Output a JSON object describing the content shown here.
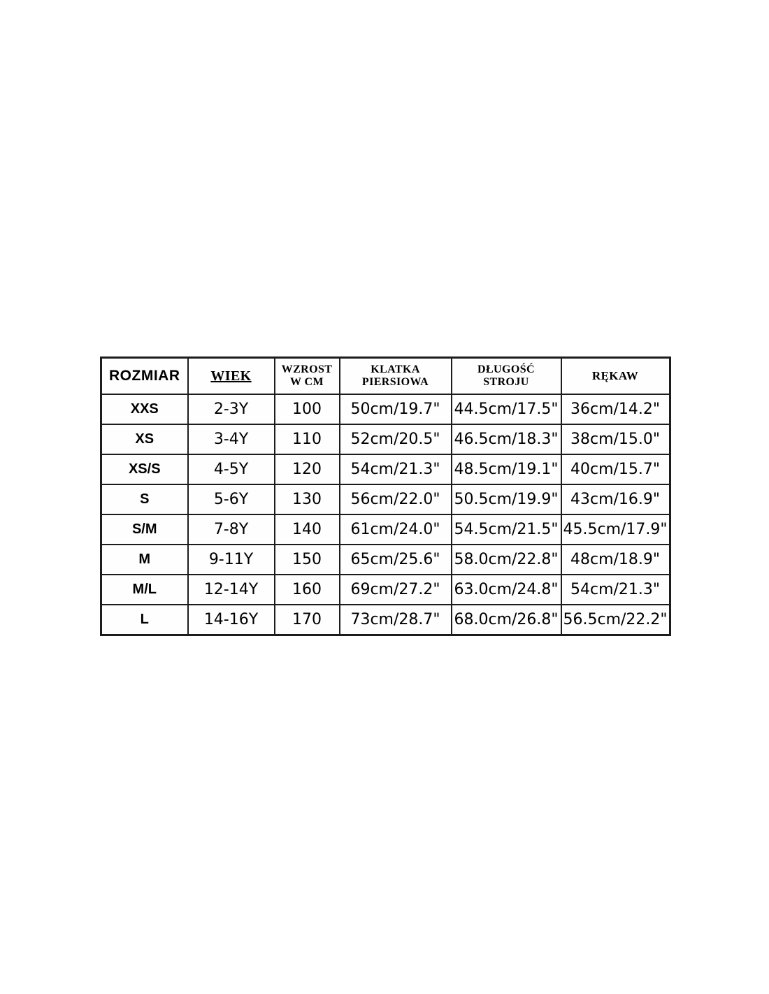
{
  "page": {
    "background_color": "#ffffff",
    "border_color": "#1c1c1c",
    "text_color": "#000000"
  },
  "chart_data": {
    "type": "table",
    "title": "",
    "columns": [
      {
        "id": "rozmiar",
        "label": "ROZMIAR"
      },
      {
        "id": "wiek",
        "label": "WIEK"
      },
      {
        "id": "wzrost",
        "label": "WZROST\nW CM"
      },
      {
        "id": "klatka",
        "label": "KLATKA\nPIERSIOWA"
      },
      {
        "id": "dlugosc",
        "label": "DŁUGOŚĆ\nSTROJU"
      },
      {
        "id": "rekaw",
        "label": "RĘKAW"
      }
    ],
    "rows": [
      {
        "rozmiar": "XXS",
        "wiek": "2-3Y",
        "wzrost": "100",
        "klatka": "50cm/19.7\"",
        "dlugosc": "44.5cm/17.5\"",
        "rekaw": "36cm/14.2\""
      },
      {
        "rozmiar": "XS",
        "wiek": "3-4Y",
        "wzrost": "110",
        "klatka": "52cm/20.5\"",
        "dlugosc": "46.5cm/18.3\"",
        "rekaw": "38cm/15.0\""
      },
      {
        "rozmiar": "XS/S",
        "wiek": "4-5Y",
        "wzrost": "120",
        "klatka": "54cm/21.3\"",
        "dlugosc": "48.5cm/19.1\"",
        "rekaw": "40cm/15.7\""
      },
      {
        "rozmiar": "S",
        "wiek": "5-6Y",
        "wzrost": "130",
        "klatka": "56cm/22.0\"",
        "dlugosc": "50.5cm/19.9\"",
        "rekaw": "43cm/16.9\""
      },
      {
        "rozmiar": "S/M",
        "wiek": "7-8Y",
        "wzrost": "140",
        "klatka": "61cm/24.0\"",
        "dlugosc": "54.5cm/21.5\"",
        "rekaw": "45.5cm/17.9\""
      },
      {
        "rozmiar": "M",
        "wiek": "9-11Y",
        "wzrost": "150",
        "klatka": "65cm/25.6\"",
        "dlugosc": "58.0cm/22.8\"",
        "rekaw": "48cm/18.9\""
      },
      {
        "rozmiar": "M/L",
        "wiek": "12-14Y",
        "wzrost": "160",
        "klatka": "69cm/27.2\"",
        "dlugosc": "63.0cm/24.8\"",
        "rekaw": "54cm/21.3\""
      },
      {
        "rozmiar": "L",
        "wiek": "14-16Y",
        "wzrost": "170",
        "klatka": "73cm/28.7\"",
        "dlugosc": "68.0cm/26.8\"",
        "rekaw": "56.5cm/22.2\""
      }
    ]
  }
}
